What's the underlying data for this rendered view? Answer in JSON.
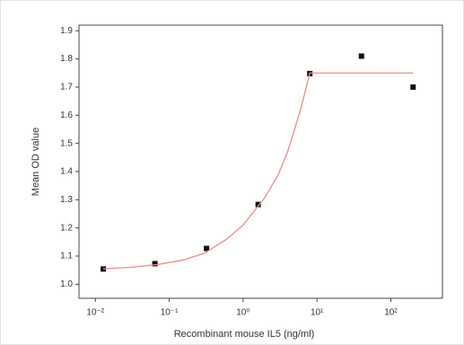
{
  "chart_data": {
    "type": "scatter",
    "xlabel": "Recombinant mouse IL5 (ng/ml)",
    "ylabel": "Mean OD value",
    "xscale": "log",
    "xlim": [
      0.006,
      500
    ],
    "ylim": [
      0.95,
      1.92
    ],
    "xticks": [
      {
        "value": 0.01,
        "label": "10⁻²"
      },
      {
        "value": 0.1,
        "label": "10⁻¹"
      },
      {
        "value": 1,
        "label": "10⁰"
      },
      {
        "value": 10,
        "label": "10¹"
      },
      {
        "value": 100,
        "label": "10²"
      }
    ],
    "yticks": [
      {
        "value": 1,
        "label": "1.0"
      },
      1.1,
      1.2,
      1.3,
      1.4,
      1.5,
      1.6,
      1.7,
      1.8,
      1.9
    ],
    "series": [
      {
        "kind": "points",
        "color": "#111111",
        "x": [
          0.0128,
          0.064,
          0.32,
          1.6,
          8,
          40,
          200
        ],
        "values": [
          1.054,
          1.073,
          1.127,
          1.283,
          1.748,
          1.81,
          1.7
        ]
      },
      {
        "kind": "curve",
        "color": "#f08a8a",
        "x": [
          0.0128,
          0.03,
          0.07,
          0.15,
          0.3,
          0.6,
          1,
          2,
          3,
          4,
          6,
          8,
          20,
          200
        ],
        "values": [
          1.055,
          1.06,
          1.07,
          1.085,
          1.11,
          1.16,
          1.21,
          1.31,
          1.39,
          1.47,
          1.62,
          1.75,
          1.75,
          1.75
        ]
      }
    ]
  }
}
